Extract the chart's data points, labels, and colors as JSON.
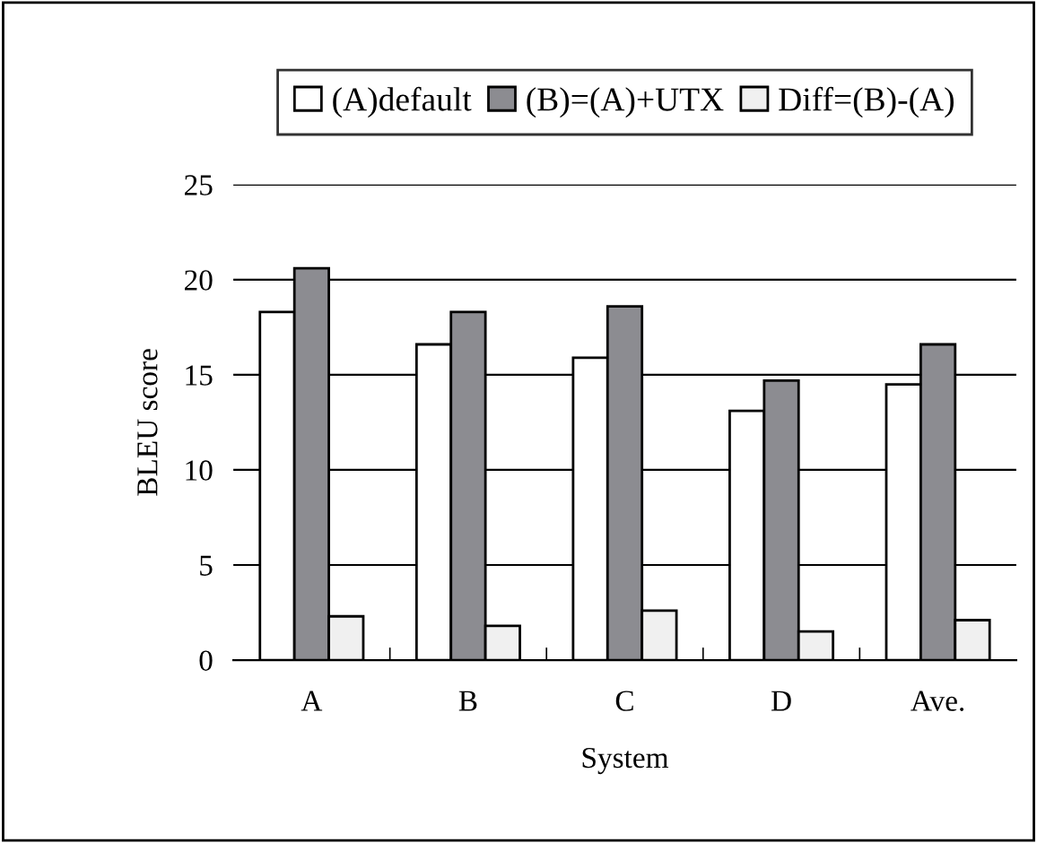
{
  "chart_data": {
    "type": "bar",
    "xlabel": "System",
    "ylabel": "BLEU score",
    "categories": [
      "A",
      "B",
      "C",
      "D",
      "Ave."
    ],
    "series": [
      {
        "name": "(A)default",
        "color": "#ffffff",
        "values": [
          18.3,
          16.6,
          15.9,
          13.1,
          14.5
        ]
      },
      {
        "name": "(B)=(A)+UTX",
        "color": "#8c8c91",
        "values": [
          20.6,
          18.3,
          18.6,
          14.7,
          16.6
        ]
      },
      {
        "name": "Diff=(B)-(A)",
        "color": "#f0f0f0",
        "values": [
          2.3,
          1.8,
          2.6,
          1.5,
          2.1
        ]
      }
    ],
    "ylim": [
      0,
      25
    ],
    "yticks": [
      0,
      5,
      10,
      15,
      20,
      25
    ],
    "grid": "y",
    "legend": "top"
  }
}
